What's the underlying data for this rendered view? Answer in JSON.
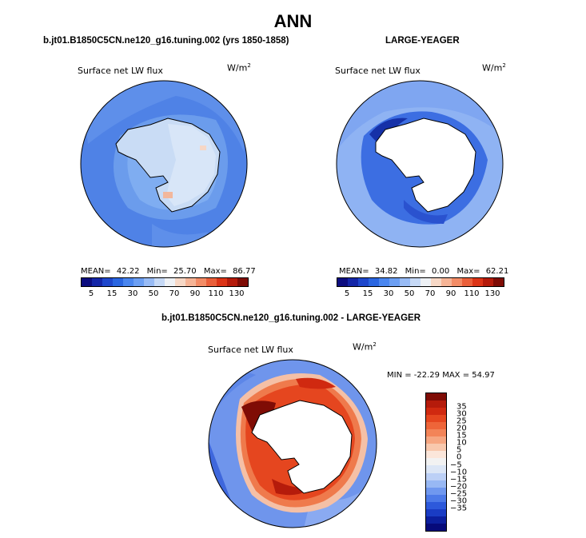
{
  "title": "ANN",
  "panels": [
    {
      "case_label": "b.jt01.B1850C5CN.ne120_g16.tuning.002 (yrs 1850-1858)",
      "plot_label": "Surface net LW flux",
      "unit": "W/m",
      "unit_exp": "2",
      "mean_label": "MEAN=",
      "mean": "42.22",
      "min_label": "Min=",
      "min": "25.70",
      "max_label": "Max=",
      "max": "86.77"
    },
    {
      "case_label": "LARGE-YEAGER",
      "plot_label": "Surface net LW flux",
      "unit": "W/m",
      "unit_exp": "2",
      "mean_label": "MEAN=",
      "mean": "34.82",
      "min_label": "Min=",
      "min": "0.00",
      "max_label": "Max=",
      "max": "62.21"
    }
  ],
  "abs_colorbar": {
    "colors": [
      "#0c0d7f",
      "#1426a8",
      "#1e47cc",
      "#2a66e1",
      "#4a86ef",
      "#6c9ff3",
      "#98bbf5",
      "#c6d9f6",
      "#eef1f5",
      "#f7d8c6",
      "#f6b496",
      "#f38c66",
      "#ea5f3a",
      "#dc3417",
      "#b51b0b",
      "#7f0c05"
    ],
    "ticks": [
      "5",
      "15",
      "30",
      "50",
      "70",
      "90",
      "110",
      "130"
    ]
  },
  "diff": {
    "case_label": "b.jt01.B1850C5CN.ne120_g16.tuning.002 - LARGE-YEAGER",
    "plot_label": "Surface net LW flux",
    "unit": "W/m",
    "unit_exp": "2",
    "minmax_text": "MIN = -22.29 MAX =  54.97",
    "colors": [
      "#7f0c05",
      "#b51b0b",
      "#d02910",
      "#e5461f",
      "#ee6539",
      "#f38458",
      "#f6a681",
      "#f8c8ad",
      "#fbe6da",
      "#f2f2f2",
      "#dce6f6",
      "#bcd0f6",
      "#98b8f4",
      "#7098ef",
      "#4d7ae8",
      "#2d59db",
      "#1a3cc4",
      "#0c1f9e",
      "#060a7a"
    ],
    "ticks": [
      "35",
      "30",
      "25",
      "20",
      "15",
      "10",
      "5",
      "0",
      "−5",
      "−10",
      "−15",
      "−20",
      "−25",
      "−30",
      "−35"
    ]
  }
}
